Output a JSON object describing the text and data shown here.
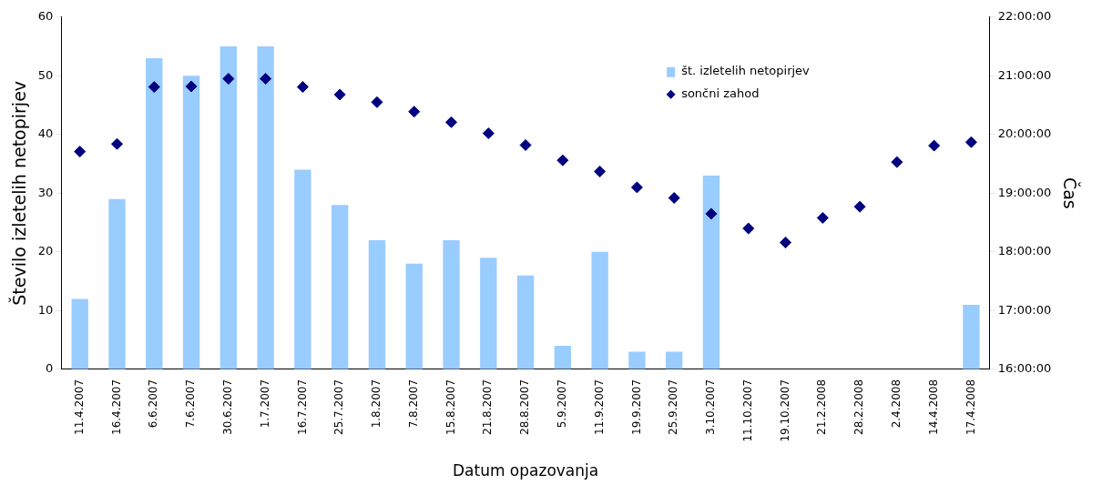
{
  "chart_data": {
    "type": "bar",
    "xlabel": "Datum opazovanja",
    "ylabel": "Število izletelih netopirjev",
    "y2label": "Čas",
    "categories": [
      "11.4.2007",
      "16.4.2007",
      "6.6.2007",
      "7.6.2007",
      "30.6.2007",
      "1.7.2007",
      "16.7.2007",
      "25.7.2007",
      "1.8.2007",
      "7.8.2007",
      "15.8.2007",
      "21.8.2007",
      "28.8.2007",
      "5.9.2007",
      "11.9.2007",
      "19.9.2007",
      "25.9.2007",
      "3.10.2007",
      "11.10.2007",
      "19.10.2007",
      "21.2.2008",
      "28.2.2008",
      "2.4.2008",
      "14.4.2008",
      "17.4.2008"
    ],
    "series": [
      {
        "name": "št. izletelih netopirjev",
        "color": "#99ccff",
        "values": [
          12,
          29,
          53,
          50,
          55,
          55,
          34,
          28,
          22,
          18,
          22,
          19,
          16,
          4,
          20,
          3,
          3,
          33,
          null,
          null,
          null,
          null,
          null,
          null,
          11
        ]
      },
      {
        "name": "sončni zahod",
        "type": "scatter",
        "axis": "y2",
        "color": "#000080",
        "marker": "diamond",
        "values": [
          19.71,
          19.84,
          20.81,
          20.82,
          20.95,
          20.95,
          20.81,
          20.68,
          20.55,
          20.39,
          20.21,
          20.02,
          19.82,
          19.56,
          19.37,
          19.1,
          18.92,
          18.65,
          18.4,
          18.16,
          18.58,
          18.77,
          19.53,
          19.81,
          19.87
        ]
      }
    ],
    "ylim": [
      0,
      60
    ],
    "yticks": [
      0,
      10,
      20,
      30,
      40,
      50,
      60
    ],
    "y2lim": [
      16,
      22
    ],
    "y2ticks": [
      {
        "value": 16,
        "label": "16:00:00"
      },
      {
        "value": 17,
        "label": "17:00:00"
      },
      {
        "value": 18,
        "label": "18:00:00"
      },
      {
        "value": 19,
        "label": "19:00:00"
      },
      {
        "value": 20,
        "label": "20:00:00"
      },
      {
        "value": 21,
        "label": "21:00:00"
      },
      {
        "value": 22,
        "label": "22:00:00"
      }
    ],
    "grid": false,
    "legend": "top right"
  }
}
